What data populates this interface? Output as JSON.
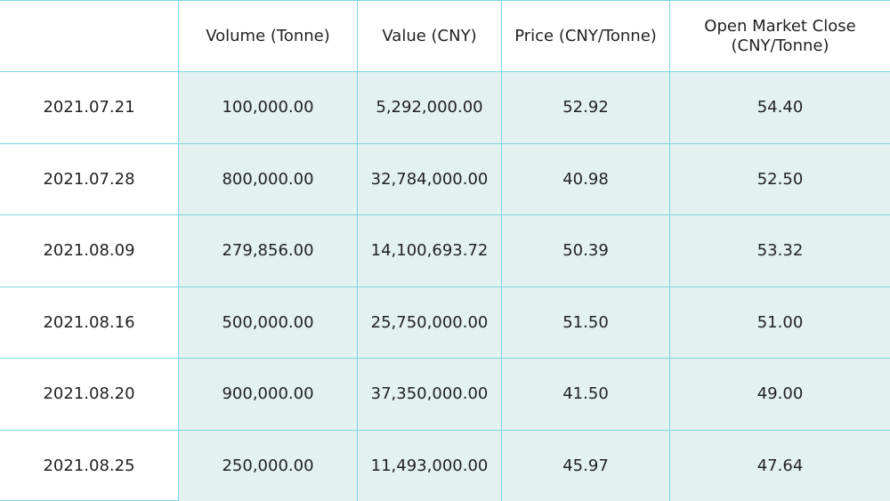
{
  "table": {
    "headers": [
      "",
      "Volume (Tonne)",
      "Value (CNY)",
      "Price (CNY/Tonne)",
      "Open Market Close (CNY/Tonne)"
    ],
    "rows": [
      [
        "2021.07.21",
        "100,000.00",
        "5,292,000.00",
        "52.92",
        "54.40"
      ],
      [
        "2021.07.28",
        "800,000.00",
        "32,784,000.00",
        "40.98",
        "52.50"
      ],
      [
        "2021.08.09",
        "279,856.00",
        "14,100,693.72",
        "50.39",
        "53.32"
      ],
      [
        "2021.08.16",
        "500,000.00",
        "25,750,000.00",
        "51.50",
        "51.00"
      ],
      [
        "2021.08.20",
        "900,000.00",
        "37,350,000.00",
        "41.50",
        "49.00"
      ],
      [
        "2021.08.25",
        "250,000.00",
        "11,493,000.00",
        "45.97",
        "47.64"
      ]
    ]
  },
  "colors": {
    "grid_line": "#7fd6df",
    "shaded_cell": "#e3f1f1",
    "text": "#222222",
    "background": "#ffffff"
  }
}
